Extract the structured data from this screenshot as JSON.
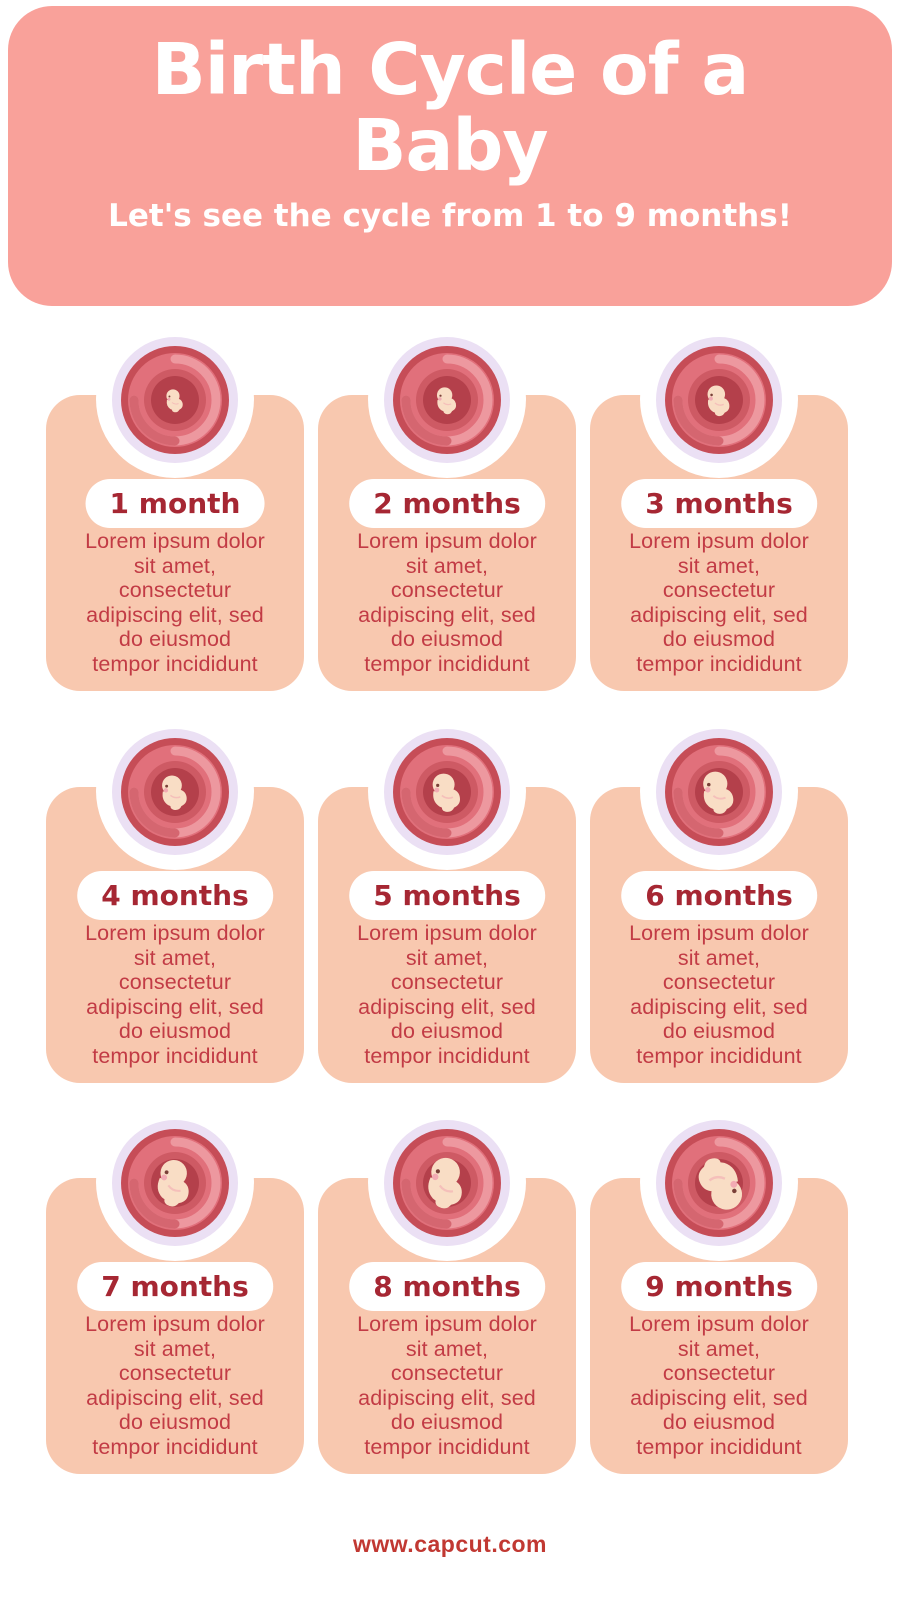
{
  "header": {
    "title": "Birth Cycle of a\nBaby",
    "subtitle": "Let's see the cycle from 1 to 9 months!"
  },
  "cards": [
    {
      "label": "1 month",
      "stage": 1,
      "body": "Lorem ipsum dolor\nsit amet,\nconsectetur\nadipiscing elit, sed\ndo eiusmod\ntempor incididunt"
    },
    {
      "label": "2 months",
      "stage": 2,
      "body": "Lorem ipsum dolor\nsit amet,\nconsectetur\nadipiscing elit, sed\ndo eiusmod\ntempor incididunt"
    },
    {
      "label": "3 months",
      "stage": 3,
      "body": "Lorem ipsum dolor\nsit amet,\nconsectetur\nadipiscing elit, sed\ndo eiusmod\ntempor incididunt"
    },
    {
      "label": "4 months",
      "stage": 4,
      "body": "Lorem ipsum dolor\nsit amet,\nconsectetur\nadipiscing elit, sed\ndo eiusmod\ntempor incididunt"
    },
    {
      "label": "5 months",
      "stage": 5,
      "body": "Lorem ipsum dolor\nsit amet,\nconsectetur\nadipiscing elit, sed\ndo eiusmod\ntempor incididunt"
    },
    {
      "label": "6 months",
      "stage": 6,
      "body": "Lorem ipsum dolor\nsit amet,\nconsectetur\nadipiscing elit, sed\ndo eiusmod\ntempor incididunt"
    },
    {
      "label": "7 months",
      "stage": 7,
      "body": "Lorem ipsum dolor\nsit amet,\nconsectetur\nadipiscing elit, sed\ndo eiusmod\ntempor incididunt"
    },
    {
      "label": "8 months",
      "stage": 8,
      "body": "Lorem ipsum dolor\nsit amet,\nconsectetur\nadipiscing elit, sed\ndo eiusmod\ntempor incididunt"
    },
    {
      "label": "9 months",
      "stage": 9,
      "body": "Lorem ipsum dolor\nsit amet,\nconsectetur\nadipiscing elit, sed\ndo eiusmod\ntempor incididunt"
    }
  ],
  "footer": {
    "url": "www.capcut.com"
  },
  "colors": {
    "header_bg": "#F9A19A",
    "card_bg": "#F8C8AF",
    "pill_text": "#A62733",
    "body_text": "#C23B45",
    "footer_text": "#C13832",
    "ring": "#EBE0F4",
    "uterus_rim": "#C64D57",
    "uterus_mid": "#E1707B",
    "uterus_light": "#EE9CA3",
    "uterus_swirl": "#CE5A64",
    "uterus_deep": "#B4404B",
    "skin": "#F9DDC5",
    "eye": "#7A4038",
    "cheek": "#F2ABB3"
  },
  "layout_cells": {
    "cols": [
      46,
      318,
      590
    ],
    "rows": [
      337,
      729,
      1120
    ]
  }
}
